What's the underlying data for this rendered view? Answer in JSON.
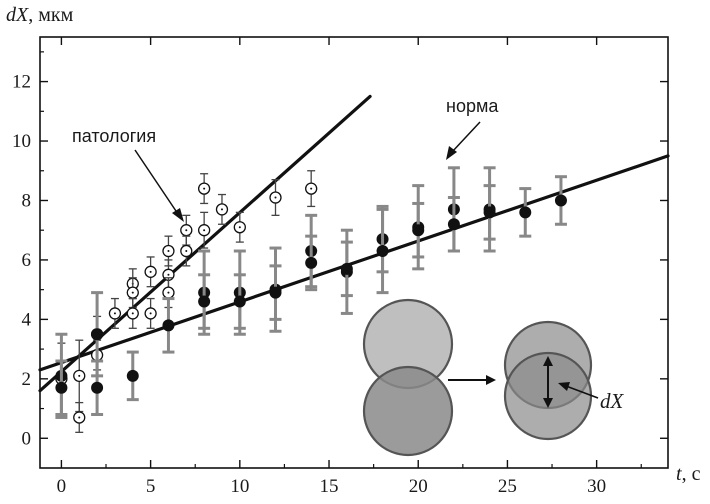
{
  "chart_data": {
    "type": "scatter",
    "title": "",
    "xlabel": {
      "var": "t",
      "unit": ", с"
    },
    "ylabel": {
      "var": "dX",
      "unit": ", мкм"
    },
    "xlim": [
      -1.2,
      34
    ],
    "ylim": [
      -1.0,
      13.5
    ],
    "xticks": [
      0,
      5,
      10,
      15,
      20,
      25,
      30
    ],
    "yticks": [
      0,
      2,
      4,
      6,
      8,
      10,
      12
    ],
    "grid": false,
    "series": [
      {
        "id": "pathology",
        "marker": "open-circle",
        "err_color": "#444444",
        "points": [
          {
            "x": 0,
            "y": 2.0,
            "e": 1.2
          },
          {
            "x": 1,
            "y": 2.1,
            "e": 1.2
          },
          {
            "x": 1,
            "y": 0.7,
            "e": 0.5
          },
          {
            "x": 2,
            "y": 3.5,
            "e": 0.6
          },
          {
            "x": 2,
            "y": 2.8,
            "e": 0.5
          },
          {
            "x": 3,
            "y": 4.2,
            "e": 0.5
          },
          {
            "x": 4,
            "y": 5.2,
            "e": 0.5
          },
          {
            "x": 4,
            "y": 4.9,
            "e": 0.5
          },
          {
            "x": 4,
            "y": 4.2,
            "e": 0.5
          },
          {
            "x": 5,
            "y": 5.6,
            "e": 0.5
          },
          {
            "x": 5,
            "y": 4.2,
            "e": 0.5
          },
          {
            "x": 6,
            "y": 6.3,
            "e": 0.5
          },
          {
            "x": 6,
            "y": 5.5,
            "e": 0.5
          },
          {
            "x": 6,
            "y": 4.9,
            "e": 0.5
          },
          {
            "x": 7,
            "y": 7.0,
            "e": 0.5
          },
          {
            "x": 7,
            "y": 6.3,
            "e": 0.5
          },
          {
            "x": 8,
            "y": 8.4,
            "e": 0.5
          },
          {
            "x": 8,
            "y": 7.0,
            "e": 0.6
          },
          {
            "x": 9,
            "y": 7.7,
            "e": 0.5
          },
          {
            "x": 10,
            "y": 7.1,
            "e": 0.5
          },
          {
            "x": 12,
            "y": 8.1,
            "e": 0.6
          },
          {
            "x": 14,
            "y": 8.4,
            "e": 0.6
          }
        ]
      },
      {
        "id": "norm",
        "marker": "filled-circle",
        "err_color": "#888888",
        "points": [
          {
            "x": 0,
            "y": 2.1,
            "e": 1.4
          },
          {
            "x": 0,
            "y": 1.7,
            "e": 0.9
          },
          {
            "x": 2,
            "y": 3.5,
            "e": 1.4
          },
          {
            "x": 2,
            "y": 1.7,
            "e": 0.9
          },
          {
            "x": 4,
            "y": 2.1,
            "e": 0.8
          },
          {
            "x": 6,
            "y": 3.8,
            "e": 0.9
          },
          {
            "x": 8,
            "y": 4.9,
            "e": 1.4
          },
          {
            "x": 8,
            "y": 4.6,
            "e": 0.9
          },
          {
            "x": 10,
            "y": 4.9,
            "e": 1.4
          },
          {
            "x": 10,
            "y": 4.6,
            "e": 0.9
          },
          {
            "x": 12,
            "y": 5.0,
            "e": 1.4
          },
          {
            "x": 12,
            "y": 4.9,
            "e": 0.9
          },
          {
            "x": 14,
            "y": 6.3,
            "e": 1.2
          },
          {
            "x": 14,
            "y": 5.9,
            "e": 0.9
          },
          {
            "x": 16,
            "y": 5.6,
            "e": 1.4
          },
          {
            "x": 16,
            "y": 5.7,
            "e": 0.9
          },
          {
            "x": 18,
            "y": 6.7,
            "e": 1.1
          },
          {
            "x": 18,
            "y": 6.3,
            "e": 1.4
          },
          {
            "x": 20,
            "y": 7.1,
            "e": 1.4
          },
          {
            "x": 20,
            "y": 7.0,
            "e": 0.9
          },
          {
            "x": 22,
            "y": 7.7,
            "e": 1.4
          },
          {
            "x": 22,
            "y": 7.2,
            "e": 0.9
          },
          {
            "x": 24,
            "y": 7.7,
            "e": 1.4
          },
          {
            "x": 24,
            "y": 7.6,
            "e": 0.9
          },
          {
            "x": 26,
            "y": 7.6,
            "e": 0.8
          },
          {
            "x": 28,
            "y": 8.0,
            "e": 0.8
          }
        ]
      }
    ],
    "fit_lines": [
      {
        "series": "pathology",
        "x": [
          -1.2,
          17.3
        ],
        "y": [
          1.6,
          11.5
        ]
      },
      {
        "series": "norm",
        "x": [
          -1.2,
          34
        ],
        "y": [
          2.3,
          9.5
        ]
      }
    ],
    "annotations": [
      {
        "id": "pathology",
        "text": "патология"
      },
      {
        "id": "norm",
        "text": "норма"
      }
    ],
    "inset": {
      "label": "dX",
      "fill": "#8a8a8a",
      "stroke": "#555555"
    }
  }
}
